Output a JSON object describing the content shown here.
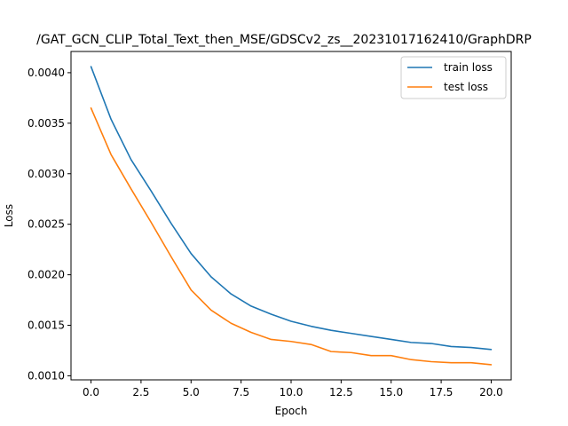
{
  "chart_data": {
    "type": "line",
    "title": "/GAT_GCN_CLIP_Total_Text_then_MSE/GDSCv2_zs__20231017162410/GraphDRP",
    "xlabel": "Epoch",
    "ylabel": "Loss",
    "xlim": [
      -1.0,
      21.0
    ],
    "ylim": [
      0.00096,
      0.00421
    ],
    "xticks": [
      0.0,
      2.5,
      5.0,
      7.5,
      10.0,
      12.5,
      15.0,
      17.5,
      20.0
    ],
    "xtick_labels": [
      "0.0",
      "2.5",
      "5.0",
      "7.5",
      "10.0",
      "12.5",
      "15.0",
      "17.5",
      "20.0"
    ],
    "yticks": [
      0.001,
      0.0015,
      0.002,
      0.0025,
      0.003,
      0.0035,
      0.004
    ],
    "ytick_labels": [
      "0.0010",
      "0.0015",
      "0.0020",
      "0.0025",
      "0.0030",
      "0.0035",
      "0.0040"
    ],
    "grid": false,
    "legend_position": "top-right",
    "x": [
      0,
      1,
      2,
      3,
      4,
      5,
      6,
      7,
      8,
      9,
      10,
      11,
      12,
      13,
      14,
      15,
      16,
      17,
      18,
      19,
      20
    ],
    "series": [
      {
        "name": "train loss",
        "color": "#1f77b4",
        "values": [
          0.00406,
          0.00354,
          0.00314,
          0.00283,
          0.00251,
          0.00221,
          0.00198,
          0.00181,
          0.00169,
          0.00161,
          0.00154,
          0.00149,
          0.00145,
          0.00142,
          0.00139,
          0.00136,
          0.00133,
          0.00132,
          0.00129,
          0.00128,
          0.00126
        ]
      },
      {
        "name": "test loss",
        "color": "#ff7f0e",
        "values": [
          0.00365,
          0.00319,
          0.00285,
          0.00252,
          0.00218,
          0.00185,
          0.00165,
          0.00152,
          0.00143,
          0.00136,
          0.00134,
          0.00131,
          0.00124,
          0.00123,
          0.0012,
          0.0012,
          0.00116,
          0.00114,
          0.00113,
          0.00113,
          0.00111
        ]
      }
    ]
  }
}
